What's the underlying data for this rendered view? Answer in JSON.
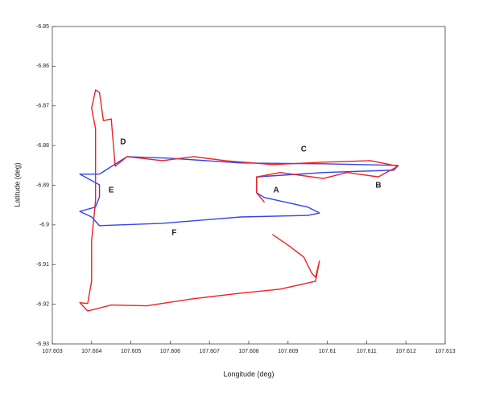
{
  "chart_data": {
    "type": "line",
    "xlabel": "Longitude (deg)",
    "ylabel": "Latitude (deg)",
    "xlim": [
      107.603,
      107.613
    ],
    "xticks": [
      107.603,
      107.604,
      107.605,
      107.606,
      107.607,
      107.608,
      107.609,
      107.61,
      107.611,
      107.612,
      107.613
    ],
    "ylim": [
      -6.93,
      -6.85
    ],
    "yticks": [
      -6.85,
      -6.86,
      -6.87,
      -6.88,
      -6.89,
      -6.9,
      -6.91,
      -6.92,
      -6.93
    ],
    "series": [
      {
        "color": "#3344ee",
        "x": [
          107.6042,
          107.6049,
          107.606,
          107.6078,
          107.6099,
          107.6118,
          107.6117,
          107.6099,
          107.6082,
          107.6082,
          107.6084,
          107.6095,
          107.6098,
          107.6095,
          107.6078,
          107.6058,
          107.6042,
          107.604,
          107.6037,
          107.6041,
          107.6042,
          107.6042,
          107.6037,
          107.6042
        ],
        "values": [
          -6.8872,
          -6.8828,
          -6.8832,
          -6.8844,
          -6.8846,
          -6.885,
          -6.8862,
          -6.8868,
          -6.8879,
          -6.8919,
          -6.8931,
          -6.8955,
          -6.897,
          -6.8976,
          -6.898,
          -6.8996,
          -6.9002,
          -6.898,
          -6.8966,
          -6.8955,
          -6.8929,
          -6.8899,
          -6.8872,
          -6.8872
        ]
      },
      {
        "color": "#ee2222",
        "x": [
          107.6086,
          107.609,
          107.6094,
          107.6096,
          107.6097,
          107.6098,
          107.6097,
          107.6088,
          107.6078,
          107.6066,
          107.6054,
          107.6045,
          107.6039,
          107.6037,
          107.6039,
          107.604,
          107.604,
          107.6041,
          107.6041,
          107.6041,
          107.604,
          107.6041,
          107.6042,
          107.6043,
          107.6045,
          107.6046,
          107.6049,
          107.6058,
          107.6066,
          107.6074,
          107.6086,
          107.6099,
          107.6111,
          107.6118,
          107.6113,
          107.6105,
          107.6099,
          107.6088,
          107.6082,
          107.6082,
          107.6084
        ],
        "values": [
          -6.9024,
          -6.9051,
          -6.9081,
          -6.9121,
          -6.9132,
          -6.9091,
          -6.9142,
          -6.9162,
          -6.9172,
          -6.9186,
          -6.9204,
          -6.9202,
          -6.9217,
          -6.9196,
          -6.9198,
          -6.9142,
          -6.904,
          -6.8939,
          -6.8874,
          -6.8757,
          -6.8706,
          -6.866,
          -6.8666,
          -6.8737,
          -6.8733,
          -6.8852,
          -6.8828,
          -6.8838,
          -6.8828,
          -6.8838,
          -6.8848,
          -6.8842,
          -6.8838,
          -6.8852,
          -6.8879,
          -6.8868,
          -6.8883,
          -6.8868,
          -6.8879,
          -6.8919,
          -6.8943
        ]
      }
    ],
    "annotations": [
      {
        "text": "A",
        "x": 107.6087,
        "y": -6.8913
      },
      {
        "text": "B",
        "x": 107.6113,
        "y": -6.8901
      },
      {
        "text": "C",
        "x": 107.6094,
        "y": -6.881
      },
      {
        "text": "D",
        "x": 107.6048,
        "y": -6.8791
      },
      {
        "text": "E",
        "x": 107.6045,
        "y": -6.8913
      },
      {
        "text": "F",
        "x": 107.6061,
        "y": -6.902
      }
    ]
  }
}
